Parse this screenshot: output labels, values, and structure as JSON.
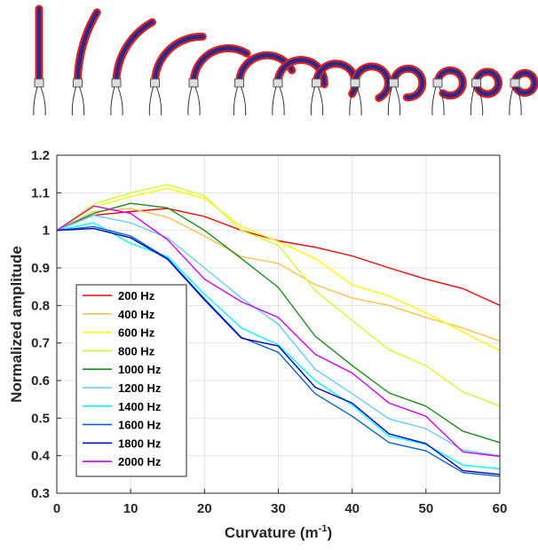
{
  "chart_data": {
    "type": "line",
    "xlabel": "Curvature (m",
    "xlabel_sup": "-1",
    "xlabel_end": ")",
    "ylabel": "Normalized amplitude",
    "xlim": [
      0,
      60
    ],
    "ylim": [
      0.3,
      1.2
    ],
    "xticks": [
      0,
      10,
      20,
      30,
      40,
      50,
      60
    ],
    "yticks": [
      0.3,
      0.4,
      0.5,
      0.6,
      0.7,
      0.8,
      0.9,
      1,
      1.1,
      1.2
    ],
    "ytick_labels": [
      "0.3",
      "0.4",
      "0.5",
      "0.6",
      "0.7",
      "0.8",
      "0.9",
      "1",
      "1.1",
      "1.2"
    ],
    "grid": true,
    "legend_position": "lower-left",
    "x": [
      0,
      5,
      10,
      15,
      20,
      25,
      30,
      35,
      40,
      45,
      50,
      55,
      60
    ],
    "series": [
      {
        "name": "200 Hz",
        "color": "#ff0000",
        "values": [
          1.0,
          1.04,
          1.05,
          1.058,
          1.037,
          1.0,
          0.972,
          0.955,
          0.932,
          0.9,
          0.87,
          0.845,
          0.8
        ]
      },
      {
        "name": "400 Hz",
        "color": "#ffc04d",
        "values": [
          1.0,
          1.05,
          1.058,
          1.035,
          0.985,
          0.93,
          0.912,
          0.855,
          0.82,
          0.8,
          0.768,
          0.74,
          0.705
        ]
      },
      {
        "name": "600 Hz",
        "color": "#ffff00",
        "values": [
          1.0,
          1.062,
          1.09,
          1.112,
          1.085,
          1.01,
          0.97,
          0.925,
          0.855,
          0.825,
          0.78,
          0.73,
          0.68
        ]
      },
      {
        "name": "800 Hz",
        "color": "#ccff33",
        "values": [
          1.0,
          1.07,
          1.1,
          1.122,
          1.092,
          1.0,
          0.96,
          0.84,
          0.76,
          0.682,
          0.64,
          0.57,
          0.532
        ]
      },
      {
        "name": "1000 Hz",
        "color": "#1a8c1a",
        "values": [
          1.0,
          1.045,
          1.072,
          1.06,
          1.0,
          0.925,
          0.848,
          0.718,
          0.64,
          0.567,
          0.532,
          0.465,
          0.435
        ]
      },
      {
        "name": "1200 Hz",
        "color": "#66ccff",
        "values": [
          1.0,
          1.04,
          1.02,
          0.98,
          0.9,
          0.82,
          0.75,
          0.63,
          0.565,
          0.498,
          0.472,
          0.415,
          0.4
        ]
      },
      {
        "name": "1400 Hz",
        "color": "#00ffff",
        "values": [
          1.0,
          1.02,
          0.965,
          0.93,
          0.83,
          0.74,
          0.695,
          0.6,
          0.535,
          0.452,
          0.43,
          0.375,
          0.365
        ]
      },
      {
        "name": "1600 Hz",
        "color": "#0066cc",
        "values": [
          1.0,
          1.01,
          0.985,
          0.925,
          0.818,
          0.715,
          0.675,
          0.565,
          0.505,
          0.435,
          0.413,
          0.355,
          0.345
        ]
      },
      {
        "name": "1800 Hz",
        "color": "#0000cc",
        "values": [
          1.0,
          1.005,
          0.98,
          0.923,
          0.815,
          0.713,
          0.692,
          0.582,
          0.54,
          0.458,
          0.432,
          0.36,
          0.35
        ]
      },
      {
        "name": "2000 Hz",
        "color": "#cc00ff",
        "values": [
          1.0,
          1.065,
          1.045,
          0.975,
          0.87,
          0.81,
          0.768,
          0.67,
          0.62,
          0.54,
          0.505,
          0.41,
          0.398
        ]
      }
    ]
  },
  "photo_strip": {
    "segment_count": 13,
    "curvature_progression": "straight-to-coiled",
    "colors": {
      "inner": "#2a2a8c",
      "outer": "#e02020",
      "wire": "#333333"
    }
  }
}
